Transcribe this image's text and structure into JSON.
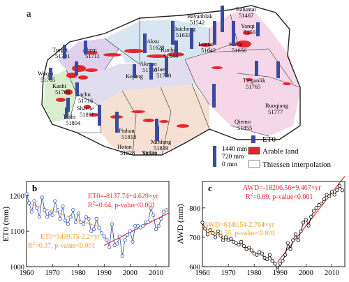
{
  "panel_a": {
    "letter": "a",
    "stations": [
      {
        "name": "Bayanblak",
        "id": "51542"
      },
      {
        "name": "Baluntai",
        "id": "51467"
      },
      {
        "name": "Yanqi",
        "id": "51567"
      },
      {
        "name": "Turgat",
        "id": "51701"
      },
      {
        "name": "Aheqi",
        "id": "51711"
      },
      {
        "name": "Baicheng",
        "id": "51633"
      },
      {
        "name": "Aksu",
        "id": "51628"
      },
      {
        "name": "Kuche",
        "id": "51644"
      },
      {
        "name": "Luntai",
        "id": "51642"
      },
      {
        "name": "Korla",
        "id": "51656"
      },
      {
        "name": "Wuqia",
        "id": "51705"
      },
      {
        "name": "Kashi",
        "id": "51709"
      },
      {
        "name": "Aketao",
        "id": "51720"
      },
      {
        "name": "Keping",
        "id": ""
      },
      {
        "name": "Alaer",
        "id": "51730"
      },
      {
        "name": "Bachu",
        "id": "51716"
      },
      {
        "name": "Tieganlik",
        "id": "51765"
      },
      {
        "name": "Ruoqiang",
        "id": "51777"
      },
      {
        "name": "Shache",
        "id": "51811"
      },
      {
        "name": "Tashi",
        "id": "51804"
      },
      {
        "name": "Pishan",
        "id": "51818"
      },
      {
        "name": "Hotan",
        "id": "51828"
      },
      {
        "name": "Minfeng",
        "id": "51839"
      },
      {
        "name": "Qiemo",
        "id": "51855"
      },
      {
        "name": "",
        "id": "51931"
      },
      {
        "name": "Yutian",
        "id": ""
      }
    ],
    "legend": {
      "scale_labels": [
        "1440 mm",
        "720 mm",
        "0 mm"
      ],
      "items": [
        {
          "label": "ET0",
          "color": "#3b4a9e"
        },
        {
          "label": "Arable land",
          "color": "#e8262a"
        },
        {
          "label": "Thiessen  interpolation",
          "color": "#ffffff"
        }
      ]
    }
  },
  "chart_data": [
    {
      "type": "line",
      "panel": "b",
      "ylabel": "ET0 (mm)",
      "xlim": [
        1960,
        2015
      ],
      "ylim": [
        1000,
        1240
      ],
      "xticks": [
        1960,
        1970,
        1980,
        1990,
        2000,
        2010
      ],
      "yticks": [
        1000,
        1100,
        1200
      ],
      "series": [
        {
          "color": "#3a55b5",
          "x": [
            1960,
            1961,
            1962,
            1963,
            1964,
            1965,
            1966,
            1967,
            1968,
            1969,
            1970,
            1971,
            1972,
            1973,
            1974,
            1975,
            1976,
            1977,
            1978,
            1979,
            1980,
            1981,
            1982,
            1983,
            1984,
            1985,
            1986,
            1987,
            1988,
            1989,
            1990,
            1991,
            1992,
            1993,
            1994,
            1995,
            1996,
            1997,
            1998,
            1999,
            2000,
            2001,
            2002,
            2003,
            2004,
            2005,
            2006,
            2007,
            2008,
            2009,
            2010,
            2011,
            2012,
            2013,
            2014
          ],
          "y": [
            1205,
            1180,
            1155,
            1185,
            1165,
            1140,
            1195,
            1160,
            1140,
            1150,
            1145,
            1185,
            1160,
            1135,
            1170,
            1130,
            1120,
            1140,
            1160,
            1125,
            1150,
            1125,
            1120,
            1140,
            1135,
            1100,
            1105,
            1135,
            1110,
            1095,
            1085,
            1075,
            1055,
            1120,
            1060,
            1065,
            1085,
            1030,
            1075,
            1090,
            1100,
            1070,
            1115,
            1115,
            1110,
            1115,
            1125,
            1125,
            1165,
            1145,
            1105,
            1115,
            1135,
            1155,
            1160
          ]
        }
      ],
      "trends": [
        {
          "label": "ET0=-8137.74+4.629×yr",
          "r2": "R",
          "r2_rest": "=0.64, p-value<0.001",
          "color": "#e8262a",
          "x": [
            1990,
            2015
          ]
        },
        {
          "label": "ET0=5499.75-2.2×yr",
          "r2": "R",
          "r2_rest": "=0.37, p-value<0.001",
          "color": "#f0a020",
          "x": [
            1960,
            1989
          ]
        }
      ]
    },
    {
      "type": "line",
      "panel": "c",
      "ylabel": "AWD (mm)",
      "xlim": [
        1960,
        2015
      ],
      "ylim": [
        600,
        890
      ],
      "xticks": [
        1960,
        1970,
        1980,
        1990,
        2000,
        2010
      ],
      "yticks": [
        600,
        700,
        800
      ],
      "series": [
        {
          "color": "#000000",
          "x": [
            1960,
            1961,
            1962,
            1963,
            1964,
            1965,
            1966,
            1967,
            1968,
            1969,
            1970,
            1971,
            1972,
            1973,
            1974,
            1975,
            1976,
            1977,
            1978,
            1979,
            1980,
            1981,
            1982,
            1983,
            1984,
            1985,
            1986,
            1987,
            1988,
            1989,
            1990,
            1991,
            1992,
            1993,
            1994,
            1995,
            1996,
            1997,
            1998,
            1999,
            2000,
            2001,
            2002,
            2003,
            2004,
            2005,
            2006,
            2007,
            2008,
            2009,
            2010,
            2011,
            2012,
            2013,
            2014
          ],
          "y": [
            750,
            730,
            710,
            725,
            715,
            700,
            720,
            705,
            690,
            700,
            690,
            695,
            685,
            680,
            675,
            685,
            670,
            660,
            665,
            655,
            645,
            640,
            650,
            645,
            630,
            625,
            640,
            620,
            610,
            590,
            610,
            620,
            640,
            680,
            660,
            690,
            710,
            690,
            720,
            750,
            760,
            740,
            770,
            790,
            800,
            810,
            815,
            830,
            845,
            840,
            855,
            845,
            860,
            875,
            860
          ]
        }
      ],
      "trends": [
        {
          "label": "AWD=-18206.56+9.467×yr",
          "r2": "R",
          "r2_rest": "=0.89, p-value<0.001",
          "color": "#e8262a",
          "x": [
            1989,
            2015
          ]
        },
        {
          "label": "AWD=6140.54-2.764×yr",
          "r2": "R",
          "r2_rest": "=0.55, p-value<0.001",
          "color": "#f0a020",
          "x": [
            1960,
            1989
          ]
        }
      ]
    }
  ]
}
